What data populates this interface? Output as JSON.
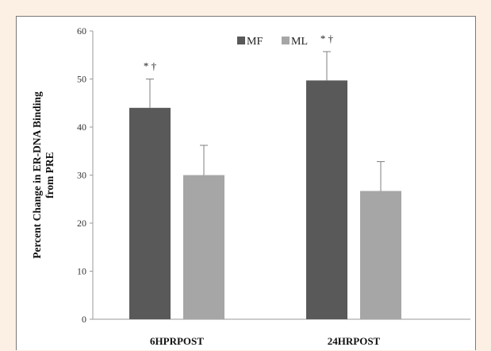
{
  "chart_data": {
    "type": "bar",
    "title": "",
    "xlabel": "",
    "ylabel_line1": "Percent Change in ER-DNA Binding",
    "ylabel_line2": "from PRE",
    "categories": [
      "6HPRPOST",
      "24HRPOST"
    ],
    "series": [
      {
        "name": "MF",
        "values": [
          44.0,
          49.7
        ],
        "errors": [
          6.0,
          6.0
        ],
        "color": "#595959"
      },
      {
        "name": "ML",
        "values": [
          30.0,
          26.7
        ],
        "errors": [
          6.2,
          6.1
        ],
        "color": "#a6a6a6"
      }
    ],
    "annotations": [
      "* †",
      "* †"
    ],
    "ylim": [
      0,
      60
    ],
    "yticks": [
      0,
      10,
      20,
      30,
      40,
      50,
      60
    ],
    "legend_position": "top-center",
    "grid": false
  }
}
